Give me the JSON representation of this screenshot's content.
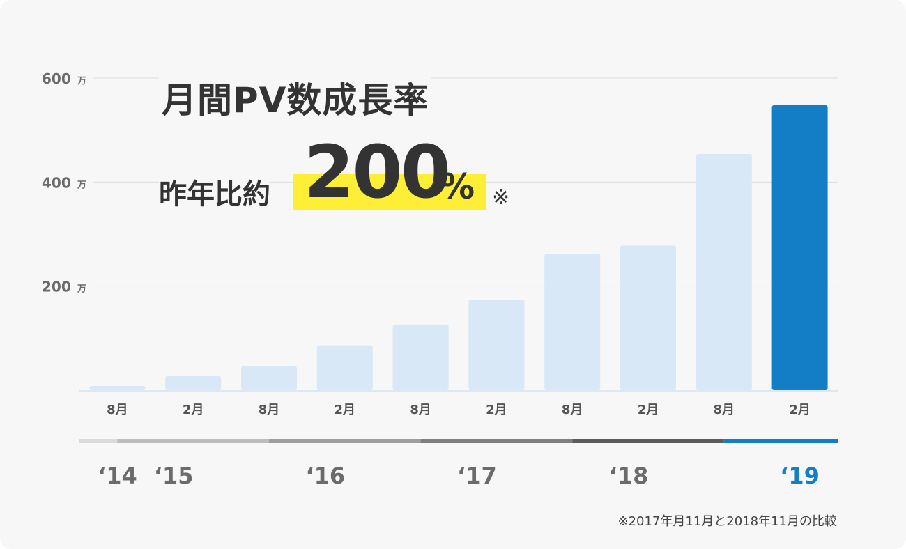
{
  "headline": {
    "title": "月間PV数成長率",
    "subtitle_prefix": "昨年比約",
    "rate_value": "200",
    "rate_unit": "%",
    "rate_note_mark": "※"
  },
  "footnote": "※2017年月11月と2018年11月の比較",
  "colors": {
    "bar_default": "#d8e8f6",
    "bar_highlight": "#137ec5",
    "highlight_yellow": "#ffee36",
    "text_dark": "#333333"
  },
  "chart_data": {
    "type": "bar",
    "title": "",
    "xlabel": "",
    "ylabel": "",
    "y_unit": "万",
    "ylim": [
      0,
      600
    ],
    "yticks": [
      200,
      400,
      600
    ],
    "grid": true,
    "categories": [
      "8月",
      "2月",
      "8月",
      "2月",
      "8月",
      "2月",
      "8月",
      "2月",
      "8月",
      "2月"
    ],
    "values": [
      8,
      27,
      46,
      86,
      126,
      174,
      262,
      278,
      454,
      548
    ],
    "highlight_index": 9,
    "years": [
      {
        "label": "‘14",
        "span": 1,
        "color": "#dadada"
      },
      {
        "label": "‘15",
        "span": 2,
        "color": "#bdbdbd"
      },
      {
        "label": "‘16",
        "span": 2,
        "color": "#9e9e9e"
      },
      {
        "label": "‘17",
        "span": 2,
        "color": "#808080"
      },
      {
        "label": "‘18",
        "span": 2,
        "color": "#5c5c5c"
      },
      {
        "label": "‘19",
        "span": 1,
        "color": "#137ec5",
        "label_color": "#137ec5"
      }
    ]
  }
}
